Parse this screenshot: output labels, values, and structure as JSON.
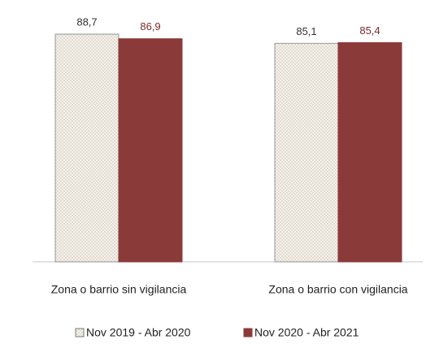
{
  "chart_data": {
    "type": "bar",
    "categories": [
      "Zona o barrio sin vigilancia",
      "Zona o barrio con vigilancia"
    ],
    "series": [
      {
        "name": "Nov 2019 - Abr 2020",
        "color": "#f4f0e8",
        "values": [
          88.7,
          85.1
        ],
        "value_labels": [
          "88,7",
          "85,1"
        ]
      },
      {
        "name": "Nov 2020 - Abr 2021",
        "color": "#8b3a3a",
        "values": [
          86.9,
          85.4
        ],
        "value_labels": [
          "86,9",
          "85,4"
        ]
      }
    ]
  }
}
